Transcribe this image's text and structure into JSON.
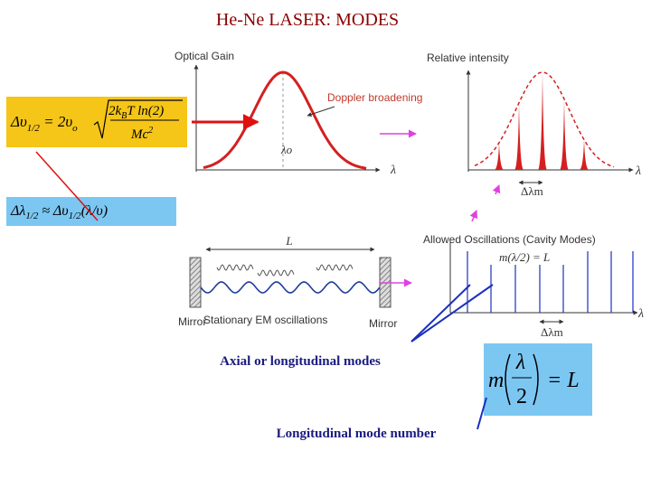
{
  "header": {
    "title": "He-Ne LASER: MODES"
  },
  "gain_panel": {
    "axis_label": "Optical Gain",
    "annotation": "Doppler broadening",
    "center_label": "λo",
    "x_label": "λ"
  },
  "intensity_panel": {
    "axis_label": "Relative intensity",
    "x_label": "λ",
    "spacing_label": "Δλm"
  },
  "cavity_panel": {
    "length_label": "L",
    "left_mirror": "Mirror",
    "right_mirror": "Mirror",
    "wave_label": "Stationary EM oscillations"
  },
  "modes_panel": {
    "title": "Allowed Oscillations (Cavity Modes)",
    "condition": "m(λ/2) = L",
    "x_label": "λ",
    "spacing_label": "Δλm"
  },
  "formulas": {
    "doppler_width": {
      "lhs": "Δυ",
      "lhs_sub": "1/2",
      "eq": " = 2υ",
      "eq_sub": "o",
      "num_a": "2k",
      "num_sub": "B",
      "num_b": "T ln(2)",
      "den": "Mc",
      "den_sup": "2"
    },
    "wavelength_width": {
      "lhs": "Δλ",
      "lhs_sub": "1/2",
      "eq": " ≈ Δυ",
      "eq_sub": "1/2",
      "tail": "(λ/υ)"
    },
    "cavity_condition": {
      "m": "m",
      "num": "λ",
      "den": "2",
      "rhs": "= L"
    }
  },
  "captions": {
    "axial": "Axial or longitudinal modes",
    "mode_number": "Longitudinal mode number"
  }
}
